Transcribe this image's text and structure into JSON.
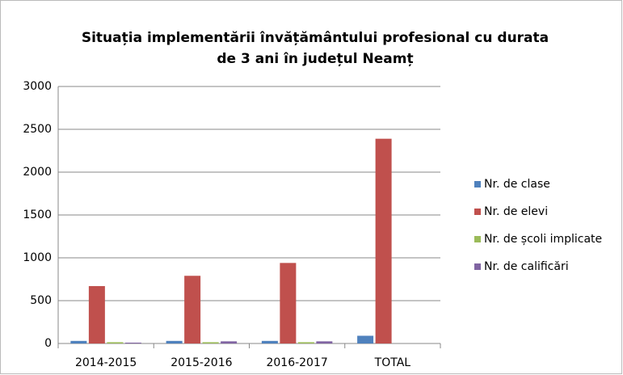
{
  "chart_data": {
    "type": "bar",
    "title": "Situația implementării învățământului profesional cu durata de 3 ani în județul Neamț",
    "categories": [
      "2014-2015",
      "2015-2016",
      "2016-2017",
      "TOTAL"
    ],
    "series": [
      {
        "name": "Nr. de clase",
        "color": "#4f81bd",
        "values": [
          30,
          30,
          30,
          90
        ]
      },
      {
        "name": "Nr. de elevi",
        "color": "#c0504d",
        "values": [
          670,
          790,
          940,
          2390
        ]
      },
      {
        "name": "Nr. de școli implicate",
        "color": "#9bbb59",
        "values": [
          15,
          15,
          15,
          null
        ]
      },
      {
        "name": "Nr. de calificări",
        "color": "#8064a2",
        "values": [
          10,
          25,
          25,
          null
        ]
      }
    ],
    "ylim": [
      0,
      3000
    ],
    "yticks": [
      0,
      500,
      1000,
      1500,
      2000,
      2500,
      3000
    ],
    "grid": true,
    "legend": "right"
  }
}
